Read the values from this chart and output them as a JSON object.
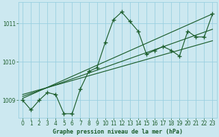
{
  "title": "Graphe pression niveau de la mer (hPa)",
  "bg_color": "#cce8f0",
  "grid_color": "#99cfe0",
  "line_color": "#1a5c2a",
  "xlim": [
    -0.5,
    23.5
  ],
  "ylim": [
    1008.55,
    1011.55
  ],
  "yticks": [
    1009,
    1010,
    1011
  ],
  "xticks": [
    0,
    1,
    2,
    3,
    4,
    5,
    6,
    7,
    8,
    9,
    10,
    11,
    12,
    13,
    14,
    15,
    16,
    17,
    18,
    19,
    20,
    21,
    22,
    23
  ],
  "main_x": [
    0,
    1,
    2,
    3,
    4,
    5,
    6,
    7,
    8,
    9,
    10,
    11,
    12,
    13,
    14,
    15,
    16,
    17,
    18,
    19,
    20,
    21,
    22,
    23
  ],
  "main_y": [
    1009.0,
    1008.75,
    1009.0,
    1009.2,
    1009.15,
    1008.65,
    1008.65,
    1009.3,
    1009.75,
    1009.85,
    1010.5,
    1011.1,
    1011.3,
    1011.05,
    1010.8,
    1010.2,
    1010.3,
    1010.4,
    1010.3,
    1010.15,
    1010.8,
    1010.65,
    1010.65,
    1011.25
  ],
  "trend1_x": [
    0,
    23
  ],
  "trend1_y": [
    1009.05,
    1011.25
  ],
  "trend2_x": [
    0,
    23
  ],
  "trend2_y": [
    1009.1,
    1010.85
  ],
  "trend3_x": [
    0,
    23
  ],
  "trend3_y": [
    1009.15,
    1010.55
  ],
  "ylabel_fontsize": 5,
  "xlabel_fontsize": 6,
  "tick_labelsize": 5.5
}
